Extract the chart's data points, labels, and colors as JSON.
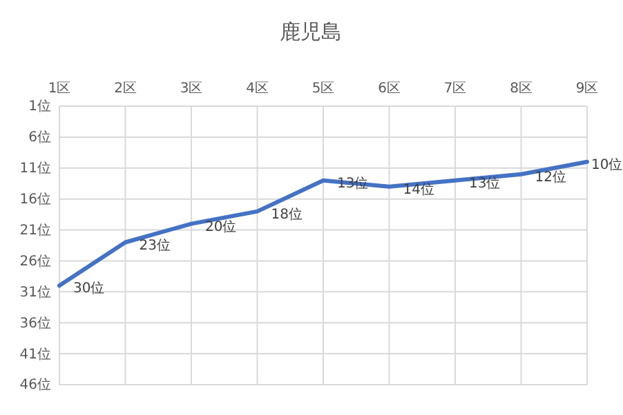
{
  "chart_data": {
    "type": "line",
    "title": "鹿児島",
    "categories": [
      "1区",
      "2区",
      "3区",
      "4区",
      "5区",
      "6区",
      "7区",
      "8区",
      "9区"
    ],
    "series": [
      {
        "color": "#4472c4",
        "values": [
          30,
          23,
          20,
          18,
          13,
          14,
          13,
          12,
          10
        ],
        "value_labels": [
          "30位",
          "23位",
          "20位",
          "18位",
          "13位",
          "14位",
          "13位",
          "12位",
          "10位"
        ]
      }
    ],
    "ylim": [
      46,
      1
    ],
    "yticks": [
      {
        "value": 1,
        "label": "1位"
      },
      {
        "value": 6,
        "label": "6位"
      },
      {
        "value": 11,
        "label": "11位"
      },
      {
        "value": 16,
        "label": "16位"
      },
      {
        "value": 21,
        "label": "21位"
      },
      {
        "value": 26,
        "label": "26位"
      },
      {
        "value": 31,
        "label": "31位"
      },
      {
        "value": 36,
        "label": "36位"
      },
      {
        "value": 41,
        "label": "41位"
      },
      {
        "value": 46,
        "label": "46位"
      }
    ],
    "grid": true,
    "marker": "none",
    "line_style": "solid"
  }
}
